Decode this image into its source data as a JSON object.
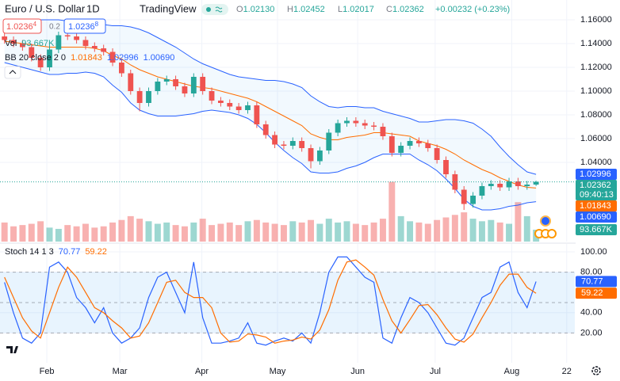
{
  "chart_data": [
    {
      "type": "candlestick",
      "title": "Euro / U.S. Dollar",
      "interval": "1D",
      "source": "TradingView",
      "header": [
        {
          "key": "O",
          "value": "1.02130"
        },
        {
          "key": "H",
          "value": "1.02452"
        },
        {
          "key": "L",
          "value": "1.02017"
        },
        {
          "key": "C",
          "value": "1.02362"
        }
      ],
      "change": "+0.00232 (+0.23%)",
      "sell": {
        "price": "1.0236",
        "pip": "4"
      },
      "spread": "0.2",
      "buy": {
        "price": "1.0236",
        "pip": "8"
      },
      "xlim": [
        -0.5,
        63.3
      ],
      "xticks": [
        {
          "value": 4.7,
          "label": "Feb"
        },
        {
          "value": 12.8,
          "label": "Mar"
        },
        {
          "value": 21.9,
          "label": "Apr"
        },
        {
          "value": 30.3,
          "label": "May"
        },
        {
          "value": 39.2,
          "label": "Jun"
        },
        {
          "value": 47.8,
          "label": "Jul"
        },
        {
          "value": 56.3,
          "label": "Aug"
        },
        {
          "value": 62.4,
          "label": "22"
        }
      ],
      "ylim": [
        0.97333,
        1.17667
      ],
      "yticks": [
        {
          "value": 1.16,
          "label": "1.16000"
        },
        {
          "value": 1.14,
          "label": "1.14000"
        },
        {
          "value": 1.12,
          "label": "1.12000"
        },
        {
          "value": 1.1,
          "label": "1.10000"
        },
        {
          "value": 1.08,
          "label": "1.08000"
        },
        {
          "value": 1.06,
          "label": "1.06000"
        },
        {
          "value": 1.04,
          "label": "1.04000"
        }
      ],
      "up_color": "#26a69a",
      "down_color": "#ef5350",
      "open": [
        1.146,
        1.143,
        1.14,
        1.137,
        1.128,
        1.12,
        1.135,
        1.147,
        1.146,
        1.143,
        1.138,
        1.136,
        1.133,
        1.124,
        1.115,
        1.1,
        1.09,
        1.1,
        1.108,
        1.11,
        1.104,
        1.098,
        1.112,
        1.1,
        1.092,
        1.09,
        1.087,
        1.084,
        1.088,
        1.072,
        1.063,
        1.055,
        1.054,
        1.058,
        1.052,
        1.041,
        1.05,
        1.065,
        1.073,
        1.075,
        1.073,
        1.071,
        1.07,
        1.062,
        1.048,
        1.054,
        1.058,
        1.056,
        1.052,
        1.042,
        1.03,
        1.017,
        1.005,
        1.012,
        1.02,
        1.022,
        1.019,
        1.024,
        1.02,
        1.0213
      ],
      "high": [
        1.149,
        1.146,
        1.143,
        1.14,
        1.131,
        1.138,
        1.15,
        1.15,
        1.149,
        1.146,
        1.141,
        1.139,
        1.136,
        1.127,
        1.118,
        1.103,
        1.103,
        1.111,
        1.113,
        1.113,
        1.107,
        1.115,
        1.115,
        1.103,
        1.095,
        1.093,
        1.09,
        1.091,
        1.091,
        1.075,
        1.066,
        1.058,
        1.061,
        1.061,
        1.055,
        1.053,
        1.068,
        1.076,
        1.078,
        1.078,
        1.076,
        1.074,
        1.073,
        1.065,
        1.057,
        1.061,
        1.061,
        1.059,
        1.055,
        1.045,
        1.033,
        1.02,
        1.015,
        1.023,
        1.025,
        1.025,
        1.027,
        1.027,
        1.0243,
        1.02452
      ],
      "low": [
        1.14,
        1.137,
        1.134,
        1.125,
        1.117,
        1.117,
        1.132,
        1.143,
        1.14,
        1.135,
        1.133,
        1.13,
        1.121,
        1.112,
        1.097,
        1.083,
        1.087,
        1.097,
        1.105,
        1.101,
        1.095,
        1.095,
        1.097,
        1.089,
        1.087,
        1.084,
        1.081,
        1.081,
        1.069,
        1.06,
        1.052,
        1.051,
        1.051,
        1.049,
        1.035,
        1.038,
        1.047,
        1.062,
        1.07,
        1.07,
        1.068,
        1.067,
        1.059,
        1.045,
        1.045,
        1.051,
        1.053,
        1.049,
        1.039,
        1.027,
        1.014,
        1.0,
        1.002,
        1.009,
        1.017,
        1.016,
        1.016,
        1.017,
        1.017,
        1.02017
      ],
      "close": [
        1.143,
        1.14,
        1.137,
        1.128,
        1.12,
        1.135,
        1.147,
        1.146,
        1.143,
        1.138,
        1.136,
        1.133,
        1.124,
        1.115,
        1.1,
        1.09,
        1.1,
        1.108,
        1.11,
        1.104,
        1.098,
        1.112,
        1.1,
        1.092,
        1.09,
        1.087,
        1.084,
        1.088,
        1.072,
        1.063,
        1.055,
        1.054,
        1.058,
        1.052,
        1.041,
        1.05,
        1.065,
        1.073,
        1.075,
        1.073,
        1.071,
        1.07,
        1.062,
        1.048,
        1.054,
        1.058,
        1.056,
        1.052,
        1.042,
        1.03,
        1.017,
        1.005,
        1.012,
        1.02,
        1.022,
        1.019,
        1.024,
        1.02,
        1.0213,
        1.02362
      ],
      "last_label": "1.02362",
      "countdown": "09:40:13",
      "volume": {
        "name": "Vol",
        "ylim": [
          0,
          1900
        ],
        "last_label": "93.667K",
        "values": [
          150,
          120,
          130,
          140,
          160,
          110,
          100,
          130,
          120,
          140,
          110,
          120,
          150,
          170,
          200,
          180,
          160,
          140,
          150,
          130,
          120,
          150,
          180,
          130,
          140,
          150,
          130,
          160,
          170,
          150,
          140,
          130,
          160,
          150,
          170,
          140,
          180,
          150,
          160,
          140,
          130,
          150,
          180,
          470,
          200,
          160,
          150,
          140,
          170,
          190,
          210,
          230,
          180,
          160,
          170,
          150,
          140,
          310,
          200,
          93.667
        ]
      },
      "bollinger": {
        "name": "BB 20 close 2 0",
        "fill": "#2196f3",
        "series": [
          {
            "color": "#ff6d00",
            "last_label": "1.01843",
            "values": [
              1.142,
              1.141,
              1.14,
              1.139,
              1.138,
              1.137,
              1.137,
              1.137,
              1.137,
              1.137,
              1.136,
              1.134,
              1.13,
              1.127,
              1.122,
              1.118,
              1.115,
              1.112,
              1.11,
              1.108,
              1.106,
              1.104,
              1.103,
              1.102,
              1.1,
              1.098,
              1.096,
              1.094,
              1.091,
              1.087,
              1.083,
              1.079,
              1.075,
              1.071,
              1.064,
              1.061,
              1.059,
              1.059,
              1.061,
              1.062,
              1.063,
              1.065,
              1.065,
              1.064,
              1.063,
              1.062,
              1.058,
              1.056,
              1.054,
              1.051,
              1.047,
              1.042,
              1.038,
              1.034,
              1.031,
              1.027,
              1.024,
              1.021,
              1.019,
              1.01843
            ]
          },
          {
            "color": "#2962ff",
            "last_label": "1.02996",
            "values": [
              1.16,
              1.16,
              1.16,
              1.16,
              1.16,
              1.16,
              1.16,
              1.159,
              1.159,
              1.158,
              1.157,
              1.156,
              1.155,
              1.155,
              1.154,
              1.152,
              1.149,
              1.145,
              1.141,
              1.137,
              1.132,
              1.127,
              1.123,
              1.12,
              1.117,
              1.114,
              1.112,
              1.111,
              1.11,
              1.109,
              1.109,
              1.108,
              1.106,
              1.103,
              1.096,
              1.091,
              1.087,
              1.086,
              1.087,
              1.087,
              1.086,
              1.086,
              1.083,
              1.081,
              1.079,
              1.077,
              1.074,
              1.074,
              1.075,
              1.076,
              1.076,
              1.075,
              1.073,
              1.068,
              1.062,
              1.053,
              1.045,
              1.038,
              1.032,
              1.02996
            ]
          },
          {
            "color": "#2962ff",
            "last_label": "1.00690",
            "values": [
              1.124,
              1.122,
              1.12,
              1.118,
              1.116,
              1.114,
              1.114,
              1.115,
              1.115,
              1.116,
              1.115,
              1.112,
              1.105,
              1.099,
              1.09,
              1.084,
              1.081,
              1.079,
              1.079,
              1.079,
              1.08,
              1.081,
              1.083,
              1.084,
              1.083,
              1.082,
              1.08,
              1.077,
              1.072,
              1.065,
              1.057,
              1.05,
              1.044,
              1.039,
              1.032,
              1.031,
              1.031,
              1.032,
              1.035,
              1.037,
              1.04,
              1.044,
              1.047,
              1.047,
              1.047,
              1.047,
              1.042,
              1.038,
              1.033,
              1.026,
              1.018,
              1.009,
              1.003,
              1.0,
              1.0,
              1.001,
              1.003,
              1.004,
              1.006,
              1.0069
            ]
          }
        ]
      }
    },
    {
      "type": "stochastic",
      "title": "Stoch 14 1 3",
      "ylim": [
        -9.4,
        107.8
      ],
      "yticks": [
        {
          "value": 100,
          "label": "100.00"
        },
        {
          "value": 80,
          "label": "80.00"
        },
        {
          "value": 40,
          "label": "40.00"
        },
        {
          "value": 20,
          "label": "20.00"
        }
      ],
      "band": [
        80,
        20
      ],
      "midline": 50,
      "series": [
        {
          "color": "#2962ff",
          "last_label": "70.77",
          "values": [
            70,
            40,
            15,
            10,
            20,
            85,
            90,
            80,
            55,
            45,
            30,
            45,
            20,
            10,
            15,
            25,
            55,
            75,
            80,
            60,
            40,
            90,
            35,
            10,
            10,
            12,
            15,
            30,
            10,
            8,
            12,
            15,
            12,
            20,
            10,
            40,
            80,
            95,
            95,
            85,
            75,
            70,
            15,
            10,
            35,
            55,
            50,
            40,
            25,
            10,
            8,
            15,
            35,
            55,
            60,
            85,
            90,
            60,
            45,
            70.77
          ]
        },
        {
          "color": "#ff6d00",
          "last_label": "59.22",
          "values": [
            75,
            55,
            35,
            22,
            15,
            40,
            65,
            85,
            75,
            60,
            45,
            40,
            32,
            25,
            15,
            17,
            30,
            50,
            70,
            72,
            60,
            55,
            55,
            45,
            20,
            11,
            12,
            19,
            18,
            16,
            10,
            12,
            13,
            16,
            14,
            23,
            43,
            72,
            90,
            92,
            85,
            77,
            53,
            32,
            20,
            33,
            47,
            48,
            38,
            25,
            14,
            11,
            19,
            35,
            50,
            67,
            78,
            78,
            65,
            59.22
          ]
        }
      ]
    }
  ]
}
